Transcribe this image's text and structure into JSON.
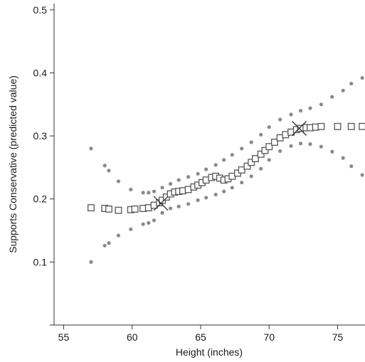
{
  "chart_data": {
    "type": "scatter",
    "title": "",
    "xlabel": "Height (inches)",
    "ylabel": "Supports Conservative (predicted value)",
    "xlim": [
      54.3,
      77.0
    ],
    "ylim": [
      0.0,
      0.51
    ],
    "x_ticks": [
      "55",
      "60",
      "65",
      "70",
      "75"
    ],
    "y_ticks": [
      "0.1",
      "0.2",
      "0.3",
      "0.4",
      "0.5"
    ],
    "grid": false,
    "legend": "none",
    "series": [
      {
        "marker": "open-square",
        "color": "#555555",
        "x": [
          57.0,
          58.0,
          58.3,
          59.0,
          59.9,
          60.2,
          60.8,
          61.2,
          61.6,
          62.0,
          62.2,
          62.5,
          62.8,
          63.1,
          63.4,
          63.7,
          64.1,
          64.5,
          64.8,
          65.1,
          65.4,
          65.8,
          66.1,
          66.4,
          66.7,
          67.0,
          67.3,
          67.7,
          68.0,
          68.4,
          68.7,
          69.0,
          69.4,
          69.7,
          70.0,
          70.4,
          70.8,
          71.2,
          71.6,
          72.0,
          72.3,
          72.7,
          73.0,
          73.4,
          73.8,
          75.0,
          76.0,
          76.8
        ],
        "y": [
          0.186,
          0.185,
          0.184,
          0.182,
          0.183,
          0.184,
          0.185,
          0.186,
          0.19,
          0.194,
          0.198,
          0.203,
          0.208,
          0.211,
          0.212,
          0.213,
          0.215,
          0.219,
          0.222,
          0.226,
          0.23,
          0.234,
          0.236,
          0.233,
          0.23,
          0.232,
          0.236,
          0.241,
          0.246,
          0.252,
          0.258,
          0.264,
          0.271,
          0.277,
          0.283,
          0.29,
          0.297,
          0.302,
          0.306,
          0.31,
          0.312,
          0.313,
          0.313,
          0.314,
          0.315,
          0.315,
          0.315,
          0.315
        ]
      },
      {
        "marker": "x",
        "color": "#333333",
        "x": [
          62.1,
          72.2
        ],
        "y": [
          0.193,
          0.312
        ]
      },
      {
        "marker": "dot",
        "color": "#8a8a8a",
        "x": [
          57.0,
          58.0,
          58.3,
          59.0,
          59.9,
          60.8,
          61.2,
          61.6,
          62.2,
          62.8,
          63.4,
          64.1,
          64.8,
          65.4,
          66.1,
          66.7,
          67.3,
          68.0,
          68.7,
          69.4,
          70.0,
          70.8,
          71.6,
          72.3,
          73.0,
          73.8,
          74.6,
          75.4,
          76.0,
          76.8
        ],
        "y": [
          0.28,
          0.253,
          0.245,
          0.228,
          0.215,
          0.21,
          0.21,
          0.212,
          0.218,
          0.224,
          0.23,
          0.235,
          0.24,
          0.247,
          0.254,
          0.262,
          0.27,
          0.28,
          0.29,
          0.302,
          0.314,
          0.326,
          0.334,
          0.34,
          0.344,
          0.35,
          0.362,
          0.372,
          0.383,
          0.392
        ]
      },
      {
        "marker": "dot",
        "color": "#8a8a8a",
        "x": [
          57.0,
          58.0,
          58.3,
          59.0,
          59.9,
          60.8,
          61.2,
          61.6,
          62.2,
          62.8,
          63.4,
          64.1,
          64.8,
          65.4,
          66.1,
          66.7,
          67.3,
          68.0,
          68.7,
          69.4,
          70.0,
          70.8,
          71.6,
          72.3,
          73.0,
          73.8,
          74.6,
          75.4,
          76.0,
          76.8
        ],
        "y": [
          0.1,
          0.126,
          0.13,
          0.142,
          0.152,
          0.16,
          0.162,
          0.166,
          0.178,
          0.185,
          0.188,
          0.192,
          0.198,
          0.202,
          0.207,
          0.212,
          0.218,
          0.226,
          0.236,
          0.248,
          0.262,
          0.276,
          0.284,
          0.288,
          0.287,
          0.283,
          0.275,
          0.265,
          0.252,
          0.238
        ]
      }
    ]
  }
}
